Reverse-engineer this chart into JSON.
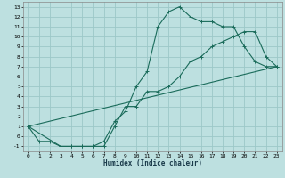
{
  "title": "",
  "xlabel": "Humidex (Indice chaleur)",
  "bg_color": "#bde0e0",
  "grid_color": "#9cc8c8",
  "line_color": "#1a6b5a",
  "marker": "+",
  "xlim": [
    -0.5,
    23.5
  ],
  "ylim": [
    -1.5,
    13.5
  ],
  "xticks": [
    0,
    1,
    2,
    3,
    4,
    5,
    6,
    7,
    8,
    9,
    10,
    11,
    12,
    13,
    14,
    15,
    16,
    17,
    18,
    19,
    20,
    21,
    22,
    23
  ],
  "yticks": [
    -1,
    0,
    1,
    2,
    3,
    4,
    5,
    6,
    7,
    8,
    9,
    10,
    11,
    12,
    13
  ],
  "curve1_x": [
    0,
    1,
    2,
    3,
    4,
    5,
    6,
    7,
    8,
    9,
    10,
    11,
    12,
    13,
    14,
    15,
    16,
    17,
    18,
    19,
    20,
    21,
    22,
    23
  ],
  "curve1_y": [
    1,
    -0.5,
    -0.5,
    -1,
    -1,
    -1,
    -1,
    -0.5,
    1.5,
    2.5,
    5,
    6.5,
    11,
    12.5,
    13,
    12,
    11.5,
    11.5,
    11,
    11,
    9,
    7.5,
    7,
    7
  ],
  "curve2_x": [
    0,
    3,
    4,
    5,
    6,
    7,
    8,
    9,
    10,
    11,
    12,
    13,
    14,
    15,
    16,
    17,
    18,
    19,
    20,
    21,
    22,
    23
  ],
  "curve2_y": [
    1,
    -1,
    -1,
    -1,
    -1,
    -1,
    1,
    3,
    3,
    4.5,
    4.5,
    5,
    6,
    7.5,
    8,
    9,
    9.5,
    10,
    10.5,
    10.5,
    8,
    7
  ],
  "curve3_x": [
    0,
    23
  ],
  "curve3_y": [
    1,
    7
  ]
}
